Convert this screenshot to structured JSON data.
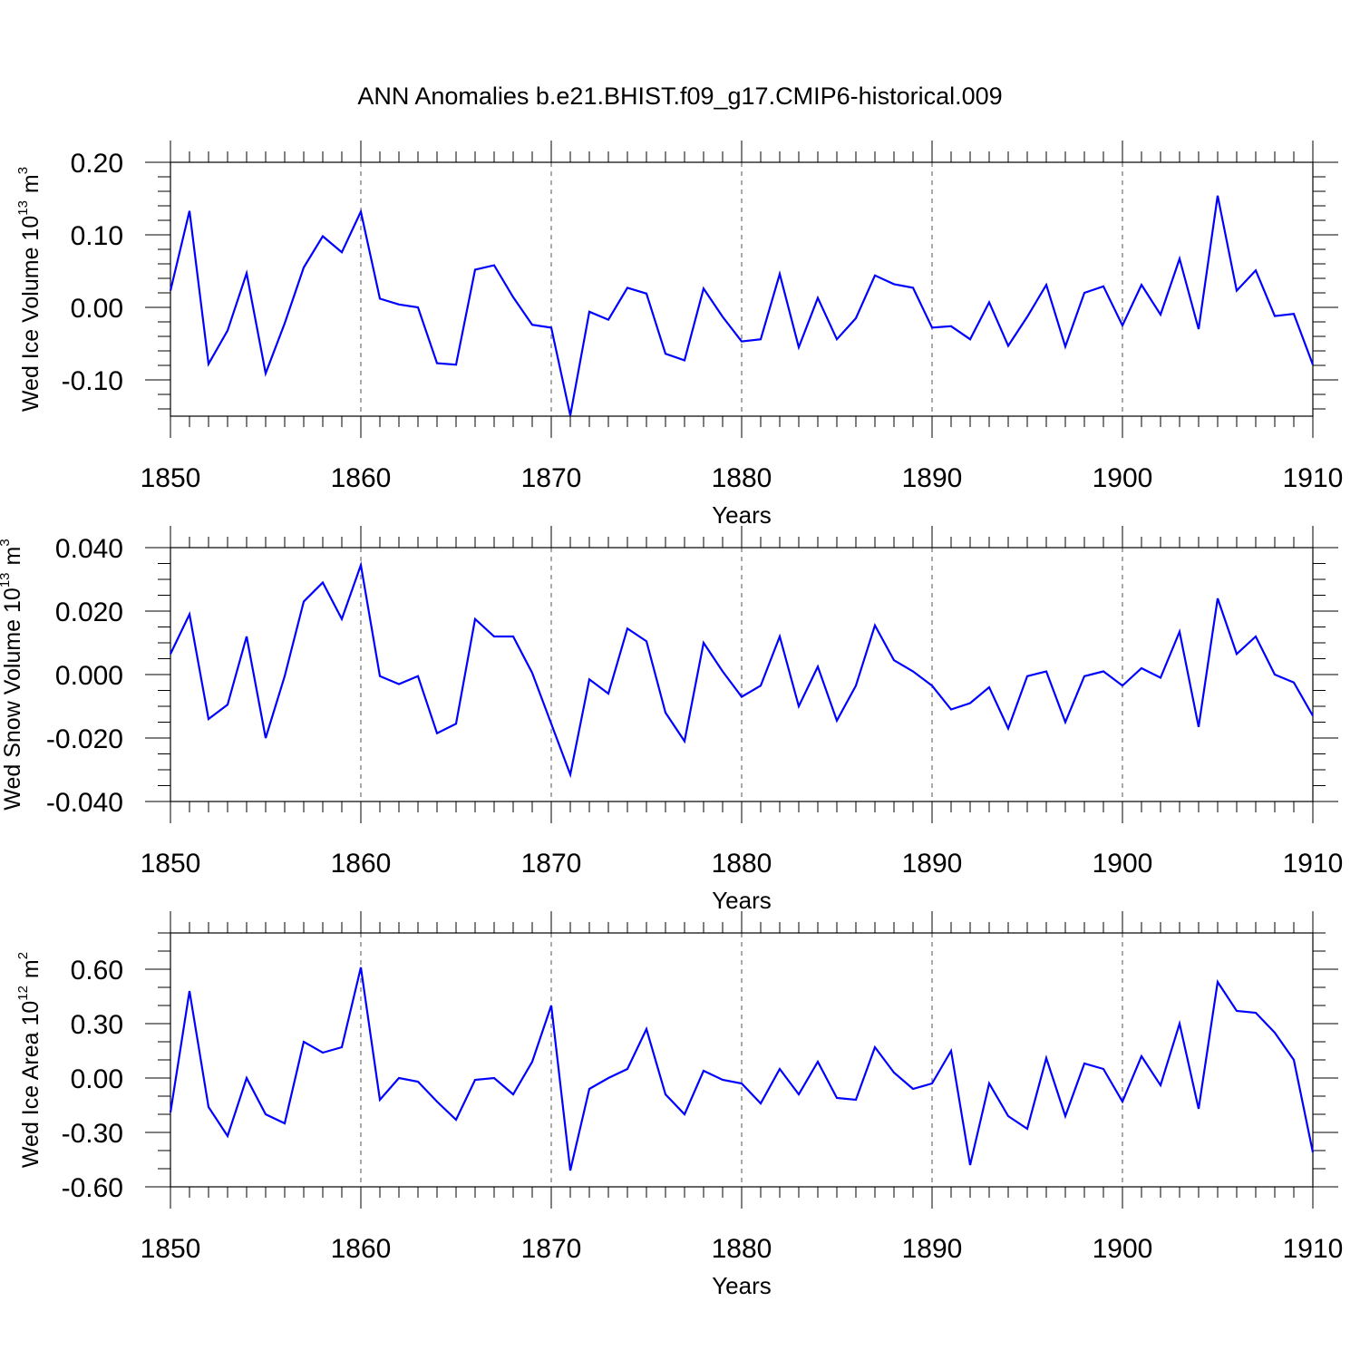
{
  "title": "ANN Anomalies b.e21.BHIST.f09_g17.CMIP6-historical.009",
  "line_color": "#0000ff",
  "chart_data": [
    {
      "type": "line",
      "ylabel_main": "Wed Ice Volume 10",
      "ylabel_exp": "13",
      "ylabel_unit": "m",
      "ylabel_unit_exp": "3",
      "xlabel": "Years",
      "xlim": [
        1850,
        1910
      ],
      "ylim": [
        -0.15,
        0.2
      ],
      "x_ticks": [
        "1850",
        "1860",
        "1870",
        "1880",
        "1890",
        "1900",
        "1910"
      ],
      "y_ticks": [
        {
          "value": 0.2,
          "label": "0.20"
        },
        {
          "value": 0.1,
          "label": "0.10"
        },
        {
          "value": 0.0,
          "label": "0.00"
        },
        {
          "value": -0.1,
          "label": "-0.10"
        }
      ],
      "y_minor_step": 0.02,
      "x_start": 1850,
      "values": [
        0.023,
        0.133,
        -0.078,
        -0.032,
        0.047,
        -0.091,
        -0.022,
        0.055,
        0.098,
        0.076,
        0.132,
        0.012,
        0.004,
        0.0,
        -0.077,
        -0.079,
        0.052,
        0.058,
        0.014,
        -0.024,
        -0.028,
        -0.149,
        -0.006,
        -0.017,
        0.027,
        0.019,
        -0.064,
        -0.073,
        0.026,
        -0.013,
        -0.047,
        -0.044,
        0.046,
        -0.055,
        0.013,
        -0.044,
        -0.015,
        0.044,
        0.032,
        0.027,
        -0.028,
        -0.026,
        -0.044,
        0.007,
        -0.053,
        -0.013,
        0.031,
        -0.054,
        0.02,
        0.029,
        -0.025,
        0.031,
        -0.01,
        0.067,
        -0.03,
        0.154,
        0.023,
        0.051,
        -0.012,
        -0.009,
        -0.079
      ]
    },
    {
      "type": "line",
      "ylabel_main": "Wed Snow Volume 10",
      "ylabel_exp": "13",
      "ylabel_unit": "m",
      "ylabel_unit_exp": "3",
      "xlabel": "Years",
      "xlim": [
        1850,
        1910
      ],
      "ylim": [
        -0.04,
        0.04
      ],
      "x_ticks": [
        "1850",
        "1860",
        "1870",
        "1880",
        "1890",
        "1900",
        "1910"
      ],
      "y_ticks": [
        {
          "value": 0.04,
          "label": "0.040"
        },
        {
          "value": 0.02,
          "label": "0.020"
        },
        {
          "value": 0.0,
          "label": "0.000"
        },
        {
          "value": -0.02,
          "label": "-0.020"
        },
        {
          "value": -0.04,
          "label": "-0.040"
        }
      ],
      "y_minor_step": 0.005,
      "x_start": 1850,
      "values": [
        0.0065,
        0.019,
        -0.014,
        -0.0095,
        0.012,
        -0.02,
        -0.0005,
        0.023,
        0.029,
        0.0175,
        0.0345,
        -0.0005,
        -0.003,
        -0.0005,
        -0.0185,
        -0.0155,
        0.0175,
        0.012,
        0.012,
        0.0005,
        -0.0155,
        -0.0315,
        -0.0015,
        -0.006,
        0.0145,
        0.0105,
        -0.012,
        -0.021,
        0.01,
        0.001,
        -0.007,
        -0.0035,
        0.012,
        -0.01,
        0.0025,
        -0.0145,
        -0.0035,
        0.0155,
        0.0045,
        0.001,
        -0.0035,
        -0.011,
        -0.009,
        -0.004,
        -0.017,
        -0.0005,
        0.001,
        -0.015,
        -0.0005,
        0.001,
        -0.0035,
        0.002,
        -0.001,
        0.0135,
        -0.0165,
        0.024,
        0.0065,
        0.012,
        0.0,
        -0.0025,
        -0.013
      ]
    },
    {
      "type": "line",
      "ylabel_main": "Wed Ice Area 10",
      "ylabel_exp": "12",
      "ylabel_unit": "m",
      "ylabel_unit_exp": "2",
      "xlabel": "Years",
      "xlim": [
        1850,
        1910
      ],
      "ylim": [
        -0.6,
        0.8
      ],
      "x_ticks": [
        "1850",
        "1860",
        "1870",
        "1880",
        "1890",
        "1900",
        "1910"
      ],
      "y_ticks": [
        {
          "value": 0.6,
          "label": "0.60"
        },
        {
          "value": 0.3,
          "label": "0.30"
        },
        {
          "value": 0.0,
          "label": "0.00"
        },
        {
          "value": -0.3,
          "label": "-0.30"
        },
        {
          "value": -0.6,
          "label": "-0.60"
        }
      ],
      "y_minor_step": 0.1,
      "x_start": 1850,
      "values": [
        -0.19,
        0.48,
        -0.16,
        -0.32,
        0.0,
        -0.2,
        -0.25,
        0.2,
        0.14,
        0.17,
        0.61,
        -0.12,
        0.0,
        -0.02,
        -0.13,
        -0.23,
        -0.01,
        0.0,
        -0.09,
        0.09,
        0.4,
        -0.51,
        -0.06,
        0.0,
        0.05,
        0.27,
        -0.09,
        -0.2,
        0.04,
        -0.01,
        -0.03,
        -0.14,
        0.05,
        -0.09,
        0.09,
        -0.11,
        -0.12,
        0.17,
        0.03,
        -0.06,
        -0.03,
        0.15,
        -0.48,
        -0.03,
        -0.21,
        -0.28,
        0.11,
        -0.21,
        0.08,
        0.05,
        -0.13,
        0.12,
        -0.04,
        0.3,
        -0.17,
        0.53,
        0.37,
        0.36,
        0.25,
        0.1,
        -0.41
      ]
    }
  ]
}
